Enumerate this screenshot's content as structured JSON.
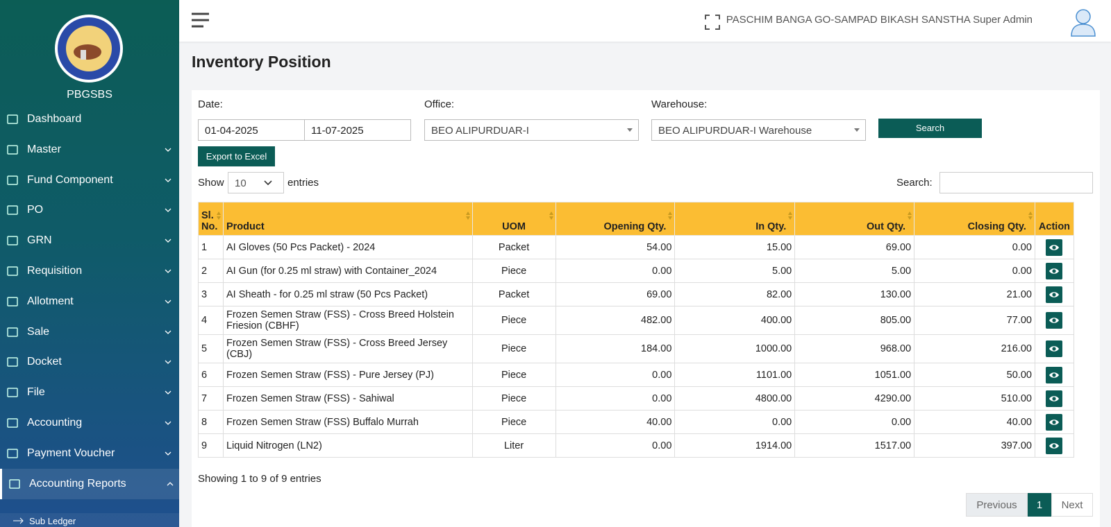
{
  "sidebar": {
    "brand": "PBGSBS",
    "menu": [
      "Dashboard",
      "Master",
      "Fund Component",
      "PO",
      "GRN",
      "Requisition",
      "Allotment",
      "Sale",
      "Docket",
      "File",
      "Accounting",
      "Payment Voucher",
      "Accounting Reports"
    ],
    "submenu": [
      "Sub Ledger"
    ]
  },
  "header": {
    "user": "PASCHIM BANGA GO-SAMPAD BIKASH SANSTHA Super Admin"
  },
  "page": {
    "title": "Inventory Position"
  },
  "filters": {
    "date_label": "Date:",
    "date_from": "01-04-2025",
    "date_to": "11-07-2025",
    "office_label": "Office:",
    "office": "BEO ALIPURDUAR-I",
    "warehouse_label": "Warehouse:",
    "warehouse": "BEO ALIPURDUAR-I Warehouse",
    "search_button": "Search",
    "export_button": "Export to Excel"
  },
  "table_controls": {
    "show": "Show",
    "page_size": "10",
    "entries": "entries",
    "search_label": "Search:"
  },
  "table": {
    "columns": [
      "Sl. No.",
      "Product",
      "UOM",
      "Opening Qty.",
      "In Qty.",
      "Out Qty.",
      "Closing Qty.",
      "Action"
    ],
    "rows": [
      [
        "1",
        "AI Gloves (50 Pcs Packet) - 2024",
        "Packet",
        "54.00",
        "15.00",
        "69.00",
        "0.00"
      ],
      [
        "2",
        "AI Gun (for 0.25 ml straw) with Container_2024",
        "Piece",
        "0.00",
        "5.00",
        "5.00",
        "0.00"
      ],
      [
        "3",
        "AI Sheath - for 0.25 ml straw (50 Pcs Packet)",
        "Packet",
        "69.00",
        "82.00",
        "130.00",
        "21.00"
      ],
      [
        "4",
        "Frozen Semen Straw (FSS) - Cross Breed Holstein Friesion (CBHF)",
        "Piece",
        "482.00",
        "400.00",
        "805.00",
        "77.00"
      ],
      [
        "5",
        "Frozen Semen Straw (FSS) - Cross Breed Jersey (CBJ)",
        "Piece",
        "184.00",
        "1000.00",
        "968.00",
        "216.00"
      ],
      [
        "6",
        "Frozen Semen Straw (FSS) - Pure Jersey (PJ)",
        "Piece",
        "0.00",
        "1101.00",
        "1051.00",
        "50.00"
      ],
      [
        "7",
        "Frozen Semen Straw (FSS) - Sahiwal",
        "Piece",
        "0.00",
        "4800.00",
        "4290.00",
        "510.00"
      ],
      [
        "8",
        "Frozen Semen Straw (FSS) Buffalo Murrah",
        "Piece",
        "40.00",
        "0.00",
        "0.00",
        "40.00"
      ],
      [
        "9",
        "Liquid Nitrogen (LN2)",
        "Liter",
        "0.00",
        "1914.00",
        "1517.00",
        "397.00"
      ]
    ]
  },
  "footer": {
    "info": "Showing 1 to 9 of 9 entries",
    "previous": "Previous",
    "current_page": "1",
    "next": "Next"
  }
}
